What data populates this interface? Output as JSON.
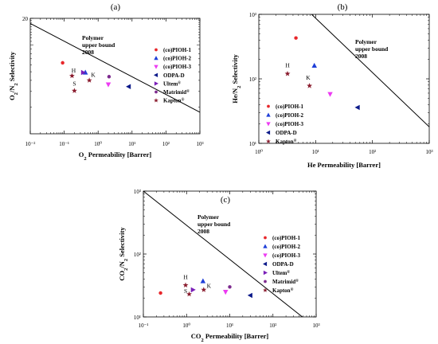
{
  "chart_data": [
    {
      "panel_label": "(a)",
      "type": "scatter",
      "xscale": "log",
      "yscale": "log",
      "xlim": [
        0.01,
        1000
      ],
      "ylim": [
        1,
        20
      ],
      "xticks": [
        "10⁻²",
        "10⁻¹",
        "10⁰",
        "10¹",
        "10²",
        "10³"
      ],
      "ytick_labels": [
        "20"
      ],
      "xlabel_parts": [
        "O",
        "2",
        " Permeability [Barrer]"
      ],
      "ylabel_parts": [
        "O",
        "2",
        "/N",
        "2",
        " Selectivity"
      ],
      "upper_bound": {
        "label_lines": [
          "Polymer",
          "upper bound",
          "2008"
        ],
        "x": [
          0.01,
          1000
        ],
        "y": [
          17.5,
          1.75
        ]
      },
      "series": [
        {
          "name": "(co)PIOH-1",
          "marker": "circle",
          "color": "#e8272b",
          "points": [
            [
              0.09,
              6.3
            ]
          ]
        },
        {
          "name": "(co)PIOH-2",
          "marker": "triangle-up",
          "color": "#1f3fd8",
          "points": [
            [
              0.42,
              4.9
            ]
          ]
        },
        {
          "name": "(co)PIOH-3",
          "marker": "triangle-down",
          "color": "#ec3bf2",
          "points": [
            [
              2.0,
              3.6
            ]
          ]
        },
        {
          "name": "ODPA-D",
          "marker": "triangle-left",
          "color": "#0c1a8a",
          "points": [
            [
              8.0,
              3.4
            ]
          ]
        },
        {
          "name": "Ultem",
          "name_sup": "®",
          "marker": "triangle-right",
          "color": "#7a1fb8",
          "points": [
            [
              0.36,
              4.9
            ]
          ]
        },
        {
          "name": "Matrimid",
          "name_sup": "®",
          "marker": "circle",
          "color": "#7d2a8e",
          "points": [
            [
              2.1,
              4.4
            ]
          ]
        },
        {
          "name": "Kapton",
          "name_sup": "®",
          "marker": "star",
          "color": "#8a1c2e",
          "points": [
            [
              0.17,
              4.5
            ],
            [
              0.2,
              3.05
            ],
            [
              0.55,
              4.0
            ]
          ]
        }
      ],
      "annotations": [
        {
          "text": "H",
          "x": 0.19,
          "y": 4.9
        },
        {
          "text": "S",
          "x": 0.2,
          "y": 3.5
        },
        {
          "text": "K",
          "x": 0.72,
          "y": 4.4
        }
      ]
    },
    {
      "panel_label": "(b)",
      "type": "scatter",
      "xscale": "log",
      "yscale": "log",
      "xlim": [
        1,
        1000
      ],
      "ylim": [
        10,
        1000
      ],
      "xticks": [
        "10⁰",
        "10¹",
        "10²",
        "10³"
      ],
      "yticks": [
        "10¹",
        "10²",
        "10³"
      ],
      "xlabel_parts": [
        "He Permeability [Barrer]"
      ],
      "ylabel_parts": [
        "He/N",
        "2",
        " Selectivity"
      ],
      "upper_bound": {
        "label_lines": [
          "Polymer",
          "upper bound",
          "2008"
        ],
        "x": [
          8.5,
          1000
        ],
        "y": [
          1000,
          18
        ]
      },
      "series": [
        {
          "name": "(co)PIOH-1",
          "marker": "circle",
          "color": "#e8272b",
          "points": [
            [
              4.5,
              430
            ]
          ]
        },
        {
          "name": "(co)PIOH-2",
          "marker": "triangle-up",
          "color": "#1f3fd8",
          "points": [
            [
              9.5,
              160
            ]
          ]
        },
        {
          "name": "(co)PIOH-3",
          "marker": "triangle-down",
          "color": "#ec3bf2",
          "points": [
            [
              18,
              58
            ]
          ]
        },
        {
          "name": "ODPA-D",
          "marker": "triangle-left",
          "color": "#0c1a8a",
          "points": [
            [
              55,
              36
            ]
          ]
        },
        {
          "name": "Kapton",
          "name_sup": "®",
          "marker": "star",
          "color": "#8a1c2e",
          "points": [
            [
              3.2,
              120
            ],
            [
              7.8,
              78
            ]
          ]
        }
      ],
      "annotations": [
        {
          "text": "H",
          "x": 3.2,
          "y": 150
        },
        {
          "text": "K",
          "x": 7.4,
          "y": 97
        }
      ]
    },
    {
      "panel_label": "(c)",
      "type": "scatter",
      "xscale": "log",
      "yscale": "log",
      "xlim": [
        0.1,
        1000
      ],
      "ylim": [
        10,
        1000
      ],
      "xticks": [
        "10⁻¹",
        "10⁰",
        "10¹",
        "10²",
        "10³"
      ],
      "yticks": [
        "10¹",
        "10²",
        "10³"
      ],
      "xlabel_parts": [
        "CO",
        "2",
        " Permeability [Barrer]"
      ],
      "ylabel_parts": [
        "CO",
        "2",
        "/N",
        "2",
        " Selectivity"
      ],
      "upper_bound": {
        "label_lines": [
          "Polymer",
          "upper bound",
          "2008"
        ],
        "x": [
          0.1,
          480
        ],
        "y": [
          1000,
          10
        ]
      },
      "series": [
        {
          "name": "(co)PIOH-1",
          "marker": "circle",
          "color": "#e8272b",
          "points": [
            [
              0.25,
              24
            ]
          ]
        },
        {
          "name": "(co)PIOH-2",
          "marker": "triangle-up",
          "color": "#1f3fd8",
          "points": [
            [
              2.4,
              37
            ]
          ]
        },
        {
          "name": "(co)PIOH-3",
          "marker": "triangle-down",
          "color": "#ec3bf2",
          "points": [
            [
              8.0,
              25
            ]
          ]
        },
        {
          "name": "ODPA-D",
          "marker": "triangle-left",
          "color": "#0c1a8a",
          "points": [
            [
              30,
              22
            ]
          ]
        },
        {
          "name": "Ultem",
          "name_sup": "®",
          "marker": "triangle-right",
          "color": "#7a1fb8",
          "points": [
            [
              1.4,
              27
            ]
          ]
        },
        {
          "name": "Matrimid",
          "name_sup": "®",
          "marker": "circle",
          "color": "#7d2a8e",
          "points": [
            [
              10,
              30
            ]
          ]
        },
        {
          "name": "Kapton",
          "name_sup": "®",
          "marker": "star",
          "color": "#8a1c2e",
          "points": [
            [
              0.95,
              32
            ],
            [
              1.15,
              23
            ],
            [
              2.5,
              27
            ]
          ]
        }
      ],
      "annotations": [
        {
          "text": "H",
          "x": 0.95,
          "y": 40
        },
        {
          "text": "S",
          "x": 0.95,
          "y": 24
        },
        {
          "text": "K",
          "x": 3.3,
          "y": 29
        }
      ]
    }
  ]
}
